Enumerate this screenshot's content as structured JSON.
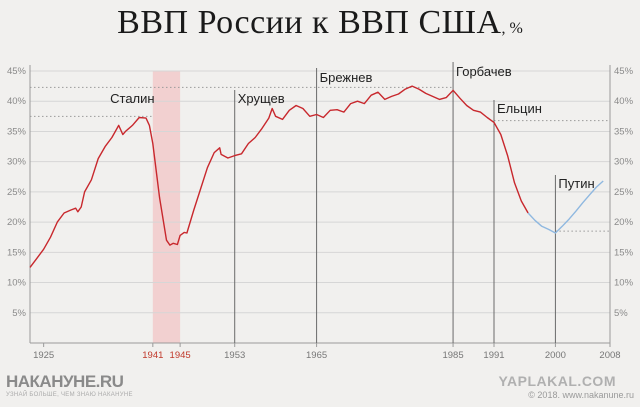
{
  "header": {
    "title": "ВВП России к ВВП США",
    "unit": ", %"
  },
  "chart_data": {
    "type": "line",
    "title": "ВВП России к ВВП США, %",
    "xlabel": "",
    "ylabel": "",
    "xlim": [
      1923,
      2008
    ],
    "ylim": [
      0,
      45
    ],
    "y_ticks": [
      "5%",
      "10%",
      "15%",
      "20%",
      "25%",
      "30%",
      "35%",
      "40%",
      "45%"
    ],
    "x_ticks": [
      {
        "label": "1925",
        "value": 1925,
        "highlight": false
      },
      {
        "label": "1941",
        "value": 1941,
        "highlight": true
      },
      {
        "label": "1945",
        "value": 1945,
        "highlight": true
      },
      {
        "label": "1953",
        "value": 1953,
        "highlight": false
      },
      {
        "label": "1965",
        "value": 1965,
        "highlight": false
      },
      {
        "label": "1985",
        "value": 1985,
        "highlight": false
      },
      {
        "label": "1991",
        "value": 1991,
        "highlight": false
      },
      {
        "label": "2000",
        "value": 2000,
        "highlight": false
      },
      {
        "label": "2008",
        "value": 2008,
        "highlight": false
      }
    ],
    "grid": "horizontal",
    "shaded_period": {
      "from": 1941,
      "to": 1945,
      "color": "#f2c6c6"
    },
    "eras": [
      {
        "label": "Сталин",
        "value": 1941
      },
      {
        "label": "Хрущев",
        "value": 1953
      },
      {
        "label": "Брежнев",
        "value": 1965
      },
      {
        "label": "Горбачев",
        "value": 1985
      },
      {
        "label": "Ельцин",
        "value": 1991
      },
      {
        "label": "Путин",
        "value": 2000
      }
    ],
    "reference_levels": [
      {
        "value": 42.3,
        "from": 1923,
        "to": 1985
      },
      {
        "value": 37.5,
        "from": 1923,
        "to": 1941
      },
      {
        "value": 36.8,
        "from": 1991,
        "to": 2008
      },
      {
        "value": 18.5,
        "from": 2000,
        "to": 2008
      }
    ],
    "series": [
      {
        "color": "#c8282d",
        "points": [
          [
            1923,
            12.5
          ],
          [
            1924,
            14
          ],
          [
            1925,
            15.5
          ],
          [
            1926,
            17.5
          ],
          [
            1927,
            20
          ],
          [
            1928,
            21.5
          ],
          [
            1929,
            22
          ],
          [
            1929.7,
            22.3
          ],
          [
            1930,
            21.7
          ],
          [
            1930.5,
            22.5
          ],
          [
            1931,
            25
          ],
          [
            1932,
            27
          ],
          [
            1933,
            30.5
          ],
          [
            1934,
            32.5
          ],
          [
            1935,
            34
          ],
          [
            1936,
            36
          ],
          [
            1936.6,
            34.5
          ],
          [
            1937,
            35
          ],
          [
            1938,
            36
          ],
          [
            1939,
            37.3
          ],
          [
            1940,
            37.2
          ],
          [
            1940.5,
            36
          ],
          [
            1941,
            33
          ],
          [
            1942,
            24
          ],
          [
            1943,
            17
          ],
          [
            1943.5,
            16.2
          ],
          [
            1944,
            16.5
          ],
          [
            1944.6,
            16.3
          ],
          [
            1945,
            17.8
          ],
          [
            1945.6,
            18.3
          ],
          [
            1946,
            18.2
          ],
          [
            1947,
            22
          ],
          [
            1948,
            25.5
          ],
          [
            1949,
            29
          ],
          [
            1950,
            31.5
          ],
          [
            1950.8,
            32.3
          ],
          [
            1951,
            31.2
          ],
          [
            1952,
            30.6
          ],
          [
            1953,
            31
          ],
          [
            1954,
            31.3
          ],
          [
            1955,
            33
          ],
          [
            1956,
            34
          ],
          [
            1957,
            35.5
          ],
          [
            1958,
            37.2
          ],
          [
            1958.5,
            38.8
          ],
          [
            1959,
            37.5
          ],
          [
            1960,
            37
          ],
          [
            1961,
            38.5
          ],
          [
            1962,
            39.3
          ],
          [
            1963,
            38.8
          ],
          [
            1964,
            37.5
          ],
          [
            1965,
            37.8
          ],
          [
            1966,
            37.3
          ],
          [
            1967,
            38.5
          ],
          [
            1968,
            38.6
          ],
          [
            1969,
            38.2
          ],
          [
            1970,
            39.6
          ],
          [
            1971,
            40
          ],
          [
            1972,
            39.6
          ],
          [
            1973,
            41
          ],
          [
            1974,
            41.5
          ],
          [
            1975,
            40.3
          ],
          [
            1976,
            40.8
          ],
          [
            1977,
            41.2
          ],
          [
            1978,
            42
          ],
          [
            1979,
            42.5
          ],
          [
            1980,
            42
          ],
          [
            1981,
            41.3
          ],
          [
            1982,
            40.8
          ],
          [
            1983,
            40.3
          ],
          [
            1984,
            40.6
          ],
          [
            1985,
            41.8
          ],
          [
            1986,
            40.5
          ],
          [
            1987,
            39.3
          ],
          [
            1988,
            38.5
          ],
          [
            1989,
            38.2
          ],
          [
            1990,
            37.3
          ],
          [
            1991,
            36.5
          ],
          [
            1992,
            34.5
          ],
          [
            1993,
            31
          ],
          [
            1994,
            26.5
          ],
          [
            1995,
            23.5
          ],
          [
            1996,
            21.5
          ]
        ]
      },
      {
        "color": "#8fb8e0",
        "points": [
          [
            1996,
            21.5
          ],
          [
            1997,
            20.3
          ],
          [
            1998,
            19.3
          ],
          [
            1999,
            18.8
          ],
          [
            2000,
            18.2
          ],
          [
            2001,
            19.3
          ],
          [
            2002,
            20.5
          ],
          [
            2003,
            21.8
          ],
          [
            2004,
            23.2
          ],
          [
            2005,
            24.5
          ],
          [
            2006,
            25.8
          ],
          [
            2007,
            26.8
          ]
        ]
      }
    ]
  },
  "branding": {
    "logo_name": "НАКАНУНЕ.RU",
    "logo_tagline": "УЗНАЙ БОЛЬШЕ, ЧЕМ ЗНАЮ НАКАНУНЕ",
    "watermark": "YAPLAKAL.COM",
    "copyright": "© 2018. www.nakanune.ru"
  }
}
